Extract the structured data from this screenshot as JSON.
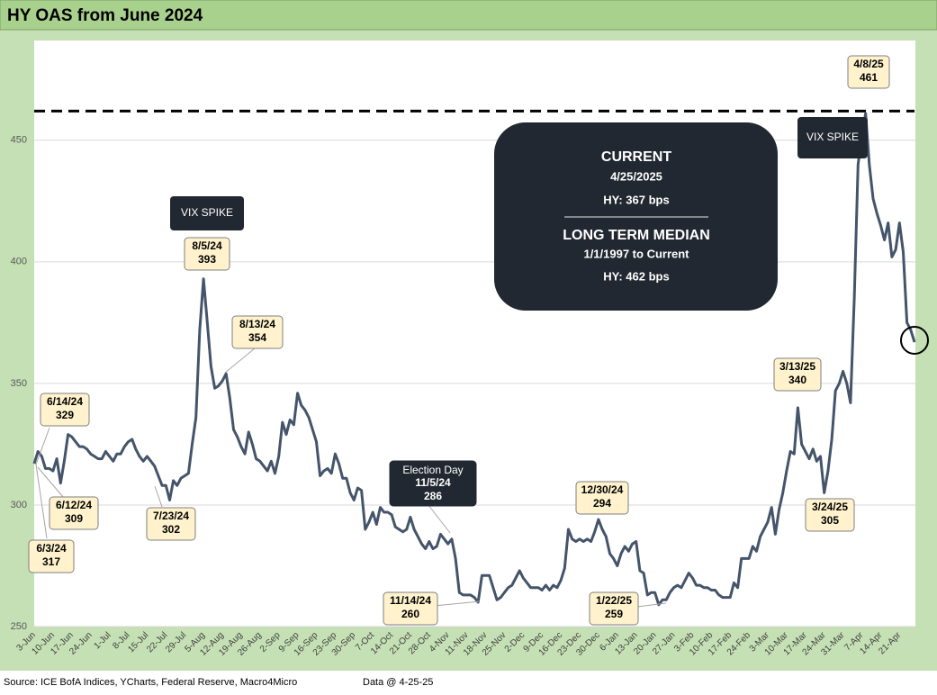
{
  "chart_data": {
    "type": "line",
    "title": "HY OAS from June 2024",
    "categories": [
      "3-Jun",
      null,
      null,
      null,
      null,
      "10-Jun",
      null,
      null,
      null,
      null,
      "17-Jun",
      null,
      null,
      null,
      null,
      "24-Jun",
      null,
      null,
      null,
      null,
      "1-Jul",
      null,
      null,
      null,
      null,
      "8-Jul",
      null,
      null,
      null,
      null,
      "15-Jul",
      null,
      null,
      null,
      null,
      "22-Jul",
      null,
      null,
      null,
      null,
      "29-Jul",
      null,
      null,
      null,
      null,
      "5-Aug",
      null,
      null,
      null,
      null,
      "12-Aug",
      null,
      null,
      null,
      null,
      "19-Aug",
      null,
      null,
      null,
      null,
      "26-Aug",
      null,
      null,
      null,
      null,
      "2-Sep",
      null,
      null,
      null,
      null,
      "9-Sep",
      null,
      null,
      null,
      null,
      "16-Sep",
      null,
      null,
      null,
      null,
      "23-Sep",
      null,
      null,
      null,
      null,
      "30-Sep",
      null,
      null,
      null,
      null,
      "7-Oct",
      null,
      null,
      null,
      null,
      "14-Oct",
      null,
      null,
      null,
      null,
      "21-Oct",
      null,
      null,
      null,
      null,
      "28-Oct",
      null,
      null,
      null,
      null,
      "4-Nov",
      null,
      null,
      null,
      null,
      "11-Nov",
      null,
      null,
      null,
      null,
      "18-Nov",
      null,
      null,
      null,
      null,
      "25-Nov",
      null,
      null,
      null,
      null,
      "2-Dec",
      null,
      null,
      null,
      null,
      "9-Dec",
      null,
      null,
      null,
      null,
      "16-Dec",
      null,
      null,
      null,
      null,
      "23-Dec",
      null,
      null,
      null,
      null,
      "30-Dec",
      null,
      null,
      null,
      null,
      "6-Jan",
      null,
      null,
      null,
      null,
      "13-Jan",
      null,
      null,
      null,
      null,
      "20-Jan",
      null,
      null,
      null,
      null,
      "27-Jan",
      null,
      null,
      null,
      null,
      "3-Feb",
      null,
      null,
      null,
      null,
      "10-Feb",
      null,
      null,
      null,
      null,
      "17-Feb",
      null,
      null,
      null,
      null,
      "24-Feb",
      null,
      null,
      null,
      null,
      "3-Mar",
      null,
      null,
      null,
      null,
      "10-Mar",
      null,
      null,
      null,
      null,
      "17-Mar",
      null,
      null,
      null,
      null,
      "24-Mar",
      null,
      null,
      null,
      null,
      "31-Mar",
      null,
      null,
      null,
      null,
      "7-Apr",
      null,
      null,
      null,
      null,
      "14-Apr",
      null,
      null,
      null,
      null,
      "21-Apr",
      null,
      null,
      null,
      null
    ],
    "values": [
      317,
      322,
      320,
      315,
      315,
      314,
      319,
      309,
      318,
      329,
      328,
      326,
      324,
      324,
      323,
      321,
      320,
      319,
      319,
      322,
      320,
      318,
      321,
      321,
      324,
      326,
      327,
      323,
      320,
      318,
      320,
      318,
      316,
      312,
      308,
      308,
      302,
      310,
      308,
      311,
      312,
      313,
      325,
      336,
      372,
      393,
      375,
      357,
      348,
      349,
      351,
      354,
      344,
      331,
      328,
      324,
      321,
      330,
      325,
      319,
      318,
      316,
      314,
      318,
      313,
      320,
      334,
      329,
      335,
      333,
      346,
      341,
      339,
      336,
      331,
      326,
      312,
      314,
      315,
      313,
      321,
      317,
      311,
      311,
      305,
      302,
      307,
      306,
      290,
      293,
      297,
      292,
      299,
      297,
      297,
      296,
      291,
      290,
      289,
      290,
      295,
      290,
      287,
      284,
      282,
      285,
      282,
      283,
      288,
      286,
      284,
      286,
      278,
      264,
      263,
      263,
      263,
      262,
      260,
      271,
      271,
      271,
      266,
      261,
      262,
      264,
      266,
      267,
      270,
      273,
      270,
      268,
      266,
      266,
      266,
      265,
      267,
      265,
      267,
      266,
      269,
      274,
      290,
      286,
      285,
      286,
      285,
      286,
      285,
      289,
      294,
      290,
      287,
      280,
      278,
      275,
      280,
      283,
      281,
      284,
      285,
      273,
      272,
      263,
      264,
      264,
      259,
      261,
      261,
      264,
      266,
      267,
      266,
      269,
      272,
      270,
      267,
      267,
      266,
      266,
      265,
      265,
      263,
      262,
      262,
      262,
      268,
      266,
      278,
      278,
      278,
      283,
      281,
      287,
      290,
      293,
      299,
      288,
      298,
      305,
      314,
      322,
      321,
      340,
      325,
      322,
      319,
      323,
      318,
      320,
      305,
      314,
      327,
      347,
      350,
      355,
      350,
      342,
      385,
      440,
      452,
      461,
      440,
      426,
      420,
      415,
      409,
      416,
      402,
      405,
      416,
      404,
      375,
      372,
      367
    ],
    "color": "#44546a",
    "ylim": [
      250,
      491
    ],
    "yticks": [
      250,
      300,
      350,
      400,
      450
    ],
    "grid": true,
    "reference_line": 462,
    "annotations": [
      {
        "date": "6/3/24",
        "value": 317
      },
      {
        "date": "6/12/24",
        "value": 309
      },
      {
        "date": "6/14/24",
        "value": 329
      },
      {
        "date": "7/23/24",
        "value": 302
      },
      {
        "date": "8/5/24",
        "value": 393
      },
      {
        "date": "8/13/24",
        "value": 354
      },
      {
        "note": "Election Day",
        "date": "11/5/24",
        "value": 286
      },
      {
        "date": "11/14/24",
        "value": 260
      },
      {
        "date": "12/30/24",
        "value": 294
      },
      {
        "date": "1/22/25",
        "value": 259
      },
      {
        "date": "3/13/25",
        "value": 340
      },
      {
        "date": "3/24/25",
        "value": 305
      },
      {
        "date": "4/8/25",
        "value": 461
      }
    ],
    "callouts": [
      "VIX SPIKE",
      "VIX SPIKE"
    ],
    "info_box": [
      "CURRENT",
      "4/25/2025",
      "HY:  367 bps",
      "LONG TERM MEDIAN",
      "1/1/1997 to Current",
      "HY: 462 bps"
    ],
    "source": "Source: ICE BofA Indices, YCharts, Federal Reserve, Macro4Micro",
    "data_note": "Data @ 4-25-25"
  }
}
